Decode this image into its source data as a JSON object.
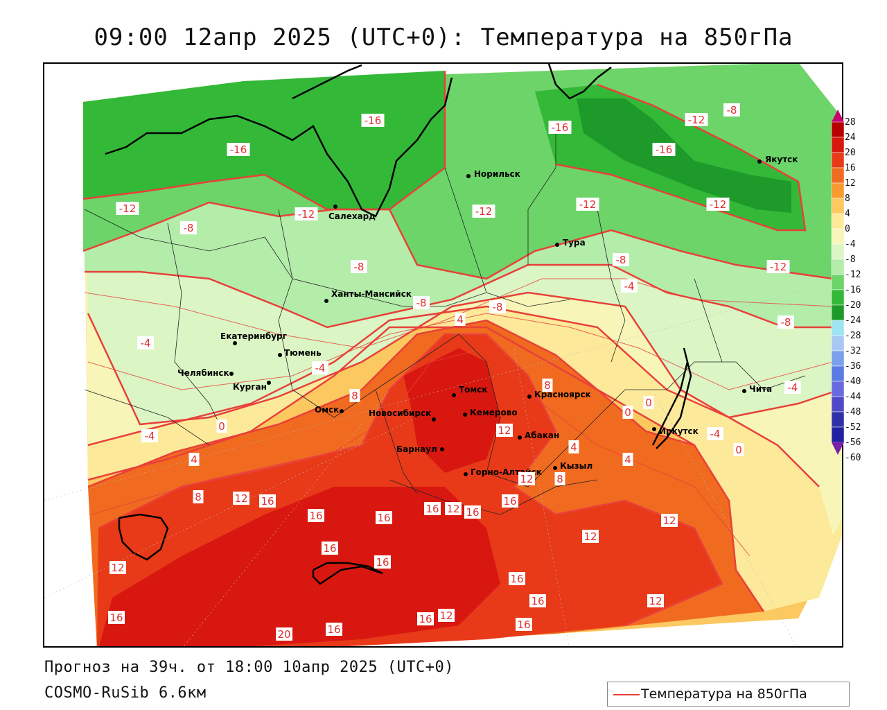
{
  "title": "09:00 12апр 2025 (UTC+0): Температура на 850гПа",
  "footer": {
    "forecast": "Прогноз на 39ч. от 18:00 10апр 2025 (UTC+0)",
    "model": "COSMO-RuSib 6.6км"
  },
  "legend": {
    "label": "Температура на 850гПа",
    "line_color": "#e8403a"
  },
  "color_scale": {
    "ticks": [
      "28",
      "24",
      "20",
      "16",
      "12",
      "8",
      "4",
      "0",
      "-4",
      "-8",
      "-12",
      "-16",
      "-20",
      "-24",
      "-28",
      "-32",
      "-36",
      "-40",
      "-44",
      "-48",
      "-52",
      "-56",
      "-60"
    ],
    "colors": [
      "#c8006e",
      "#b80000",
      "#d81810",
      "#e83a18",
      "#f06a20",
      "#f89a30",
      "#fcc860",
      "#fde99a",
      "#f7f5b8",
      "#dbf5c4",
      "#b4ecaa",
      "#6cd468",
      "#34b838",
      "#1e9a2a",
      "#9ee4f0",
      "#a8c8f4",
      "#7aa0ee",
      "#5a7ae4",
      "#6a6ae0",
      "#5048c8",
      "#3030a8",
      "#2020a0",
      "#7b1ea8"
    ]
  },
  "cities": [
    {
      "name": "Салехард"
    },
    {
      "name": "Норильск"
    },
    {
      "name": "Якутск"
    },
    {
      "name": "Тура"
    },
    {
      "name": "Ханты-Мансийск"
    },
    {
      "name": "Екатеринбург"
    },
    {
      "name": "Тюмень"
    },
    {
      "name": "Челябинск"
    },
    {
      "name": "Курган"
    },
    {
      "name": "Омск"
    },
    {
      "name": "Новосибирск"
    },
    {
      "name": "Томск"
    },
    {
      "name": "Кемерово"
    },
    {
      "name": "Красноярск"
    },
    {
      "name": "Абакан"
    },
    {
      "name": "Барнаул"
    },
    {
      "name": "Горно-Алтайск"
    },
    {
      "name": "Кызыл"
    },
    {
      "name": "Иркутск"
    },
    {
      "name": "Чита"
    }
  ],
  "isotherm_labels": [
    "-12",
    "-16",
    "-16",
    "-12",
    "-8",
    "-16",
    "-12",
    "-16",
    "-12",
    "-12",
    "-8",
    "-12",
    "-8",
    "-8",
    "-8",
    "-4",
    "-8",
    "-12",
    "-4",
    "-8",
    "4",
    "0",
    "-4",
    "8",
    "0",
    "8",
    "-4",
    "-4",
    "0",
    "4",
    "-4",
    "0",
    "12",
    "4",
    "4",
    "8",
    "12",
    "8",
    "12",
    "16",
    "16",
    "16",
    "16",
    "16",
    "12",
    "16",
    "12",
    "12",
    "12",
    "16",
    "16",
    "16",
    "16",
    "12",
    "16",
    "16",
    "12",
    "16",
    "20",
    "16"
  ]
}
